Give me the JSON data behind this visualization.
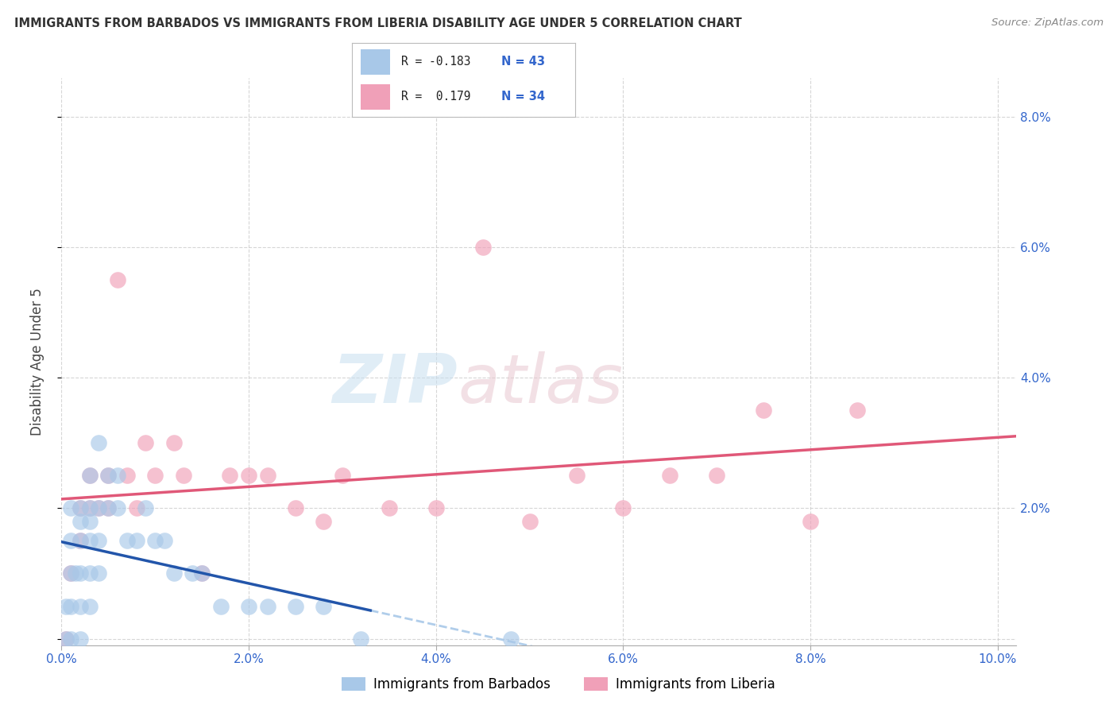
{
  "title": "IMMIGRANTS FROM BARBADOS VS IMMIGRANTS FROM LIBERIA DISABILITY AGE UNDER 5 CORRELATION CHART",
  "source": "Source: ZipAtlas.com",
  "ylabel": "Disability Age Under 5",
  "xlim": [
    0.0,
    0.102
  ],
  "ylim": [
    -0.001,
    0.086
  ],
  "barbados_color": "#a8c8e8",
  "liberia_color": "#f0a0b8",
  "barbados_line_color": "#2255aa",
  "liberia_line_color": "#e05878",
  "barbados_R": "-0.183",
  "barbados_N": "43",
  "liberia_R": "0.179",
  "liberia_N": "34",
  "barbados_x": [
    0.0005,
    0.0005,
    0.001,
    0.001,
    0.001,
    0.001,
    0.001,
    0.0015,
    0.002,
    0.002,
    0.002,
    0.002,
    0.002,
    0.002,
    0.003,
    0.003,
    0.003,
    0.003,
    0.003,
    0.003,
    0.004,
    0.004,
    0.004,
    0.004,
    0.005,
    0.005,
    0.006,
    0.006,
    0.007,
    0.008,
    0.009,
    0.01,
    0.011,
    0.012,
    0.014,
    0.015,
    0.017,
    0.02,
    0.022,
    0.025,
    0.028,
    0.032,
    0.048
  ],
  "barbados_y": [
    0.0,
    0.005,
    0.0,
    0.005,
    0.01,
    0.015,
    0.02,
    0.01,
    0.0,
    0.005,
    0.01,
    0.015,
    0.018,
    0.02,
    0.005,
    0.01,
    0.015,
    0.018,
    0.02,
    0.025,
    0.01,
    0.015,
    0.02,
    0.03,
    0.02,
    0.025,
    0.02,
    0.025,
    0.015,
    0.015,
    0.02,
    0.015,
    0.015,
    0.01,
    0.01,
    0.01,
    0.005,
    0.005,
    0.005,
    0.005,
    0.005,
    0.0,
    0.0
  ],
  "liberia_x": [
    0.0005,
    0.001,
    0.002,
    0.002,
    0.003,
    0.003,
    0.004,
    0.005,
    0.005,
    0.006,
    0.007,
    0.008,
    0.009,
    0.01,
    0.012,
    0.013,
    0.015,
    0.018,
    0.02,
    0.022,
    0.025,
    0.028,
    0.03,
    0.035,
    0.04,
    0.045,
    0.05,
    0.055,
    0.06,
    0.065,
    0.07,
    0.075,
    0.08,
    0.085
  ],
  "liberia_y": [
    0.0,
    0.01,
    0.015,
    0.02,
    0.02,
    0.025,
    0.02,
    0.02,
    0.025,
    0.055,
    0.025,
    0.02,
    0.03,
    0.025,
    0.03,
    0.025,
    0.01,
    0.025,
    0.025,
    0.025,
    0.02,
    0.018,
    0.025,
    0.02,
    0.02,
    0.06,
    0.018,
    0.025,
    0.02,
    0.025,
    0.025,
    0.035,
    0.018,
    0.035
  ],
  "watermark_zip": "ZIP",
  "watermark_atlas": "atlas",
  "background_color": "#ffffff",
  "grid_color": "#cccccc",
  "axis_tick_color": "#3366cc",
  "xticks": [
    0.0,
    0.02,
    0.04,
    0.06,
    0.08,
    0.1
  ],
  "yticks": [
    0.0,
    0.02,
    0.04,
    0.06,
    0.08
  ],
  "xticklabels": [
    "0.0%",
    "2.0%",
    "4.0%",
    "6.0%",
    "8.0%",
    "10.0%"
  ],
  "yticklabels": [
    "",
    "2.0%",
    "4.0%",
    "6.0%",
    "8.0%"
  ]
}
